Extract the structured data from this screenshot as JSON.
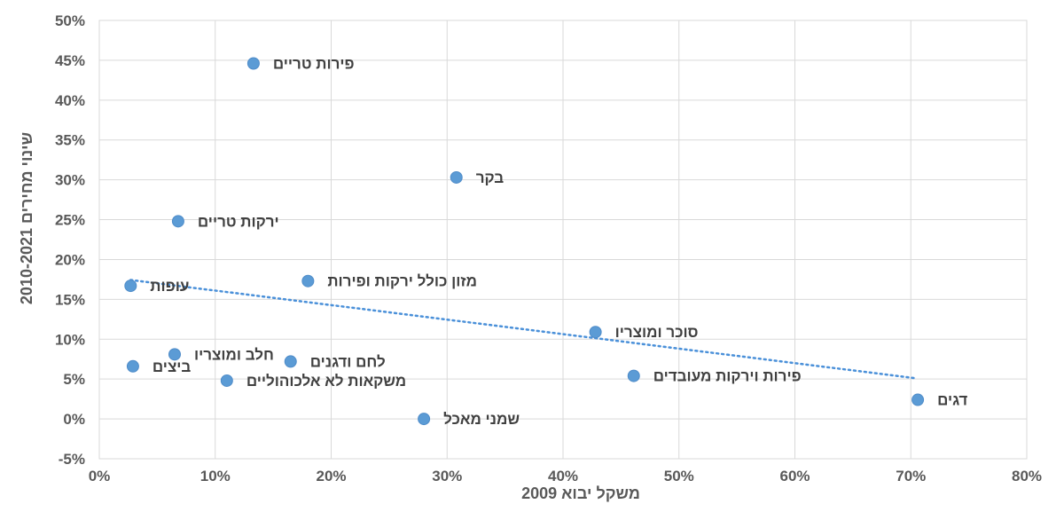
{
  "chart_data": {
    "type": "scatter",
    "xlabel": "משקל יבוא 2009",
    "ylabel": "שינוי מחירים 2010-2021",
    "xlim": [
      0,
      0.8
    ],
    "ylim": [
      -0.05,
      0.5
    ],
    "x_ticks": [
      0,
      0.1,
      0.2,
      0.3,
      0.4,
      0.5,
      0.6,
      0.7,
      0.8
    ],
    "y_ticks": [
      -0.05,
      0,
      0.05,
      0.1,
      0.15,
      0.2,
      0.25,
      0.3,
      0.35,
      0.4,
      0.45,
      0.5
    ],
    "x_tick_labels": [
      "0%",
      "10%",
      "20%",
      "30%",
      "40%",
      "50%",
      "60%",
      "70%",
      "80%"
    ],
    "y_tick_labels": [
      "-5%",
      "0%",
      "5%",
      "10%",
      "15%",
      "20%",
      "25%",
      "30%",
      "35%",
      "40%",
      "45%",
      "50%"
    ],
    "grid": true,
    "trendline": {
      "style": "dotted",
      "x_range": [
        0.027,
        0.705
      ]
    },
    "colors": {
      "point": "#5b9bd5",
      "grid": "#d9d9d9",
      "trend": "#4a90d9",
      "text": "#595959"
    },
    "points": [
      {
        "x": 0.133,
        "y": 0.446,
        "label": "פירות טריים"
      },
      {
        "x": 0.308,
        "y": 0.303,
        "label": "בקר"
      },
      {
        "x": 0.068,
        "y": 0.248,
        "label": "ירקות טריים"
      },
      {
        "x": 0.18,
        "y": 0.173,
        "label": "מזון כולל ירקות ופירות"
      },
      {
        "x": 0.027,
        "y": 0.167,
        "label": "עופות"
      },
      {
        "x": 0.428,
        "y": 0.109,
        "label": "סוכר ומוצריו"
      },
      {
        "x": 0.065,
        "y": 0.081,
        "label": "חלב ומוצריו"
      },
      {
        "x": 0.165,
        "y": 0.072,
        "label": "לחם ודגנים"
      },
      {
        "x": 0.029,
        "y": 0.066,
        "label": "ביצים"
      },
      {
        "x": 0.11,
        "y": 0.048,
        "label": "משקאות לא אלכוהוליים"
      },
      {
        "x": 0.461,
        "y": 0.054,
        "label": "פירות וירקות מעובדים"
      },
      {
        "x": 0.706,
        "y": 0.024,
        "label": "דגים"
      },
      {
        "x": 0.28,
        "y": 0.0,
        "label": "שמני מאכל"
      }
    ]
  }
}
